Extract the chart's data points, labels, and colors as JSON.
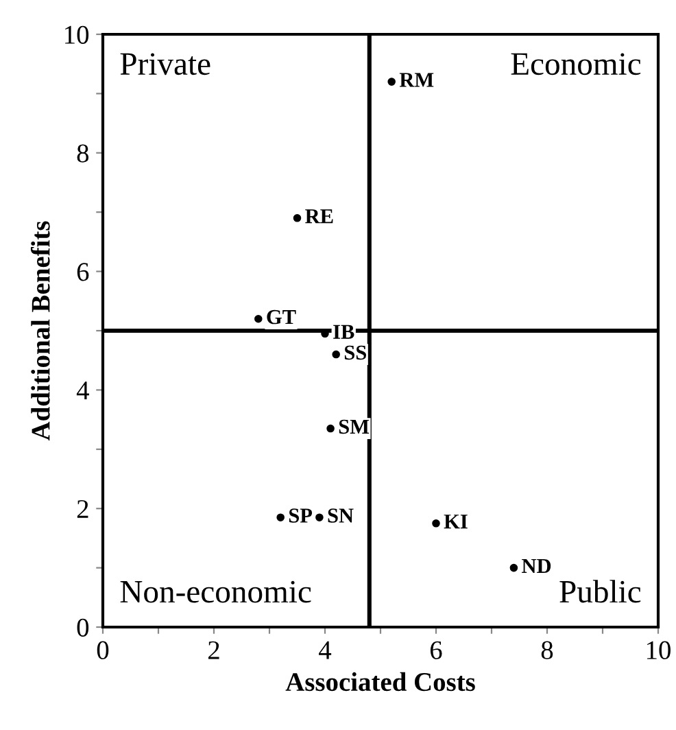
{
  "chart_data": {
    "type": "scatter",
    "xlabel": "Associated Costs",
    "ylabel": "Additional Benefits",
    "annotations": [
      "Private",
      "Economic",
      "Non-economic",
      "Public"
    ],
    "x": [
      5.2,
      3.5,
      2.8,
      4.0,
      4.2,
      4.1,
      3.2,
      3.9,
      6.0,
      7.4
    ],
    "values": [
      9.2,
      6.9,
      5.2,
      4.95,
      4.6,
      3.35,
      1.85,
      1.85,
      1.75,
      1.0
    ],
    "value_labels": [
      "RM",
      "RE",
      "GT",
      "IB",
      "SS",
      "SM",
      "SP",
      "SN",
      "KI",
      "ND"
    ],
    "marker": "circle",
    "color": "#000000",
    "grid": false,
    "ref_lines": [
      {
        "axis": "x",
        "value": 4.8,
        "color": "#000000"
      },
      {
        "axis": "y",
        "value": 5,
        "color": "#000000"
      }
    ],
    "xlim": [
      0,
      10
    ],
    "ylim": [
      0,
      10
    ],
    "xticks": [
      0,
      {
        "value": 1,
        "label": null
      },
      2,
      {
        "value": 3,
        "label": null
      },
      4,
      {
        "value": 5,
        "label": null
      },
      6,
      {
        "value": 7,
        "label": null
      },
      8,
      {
        "value": 9,
        "label": null
      },
      10
    ],
    "yticks": [
      0,
      {
        "value": 1,
        "label": null
      },
      2,
      {
        "value": 3,
        "label": null
      },
      4,
      {
        "value": 5,
        "label": null
      },
      6,
      {
        "value": 7,
        "label": null
      },
      8,
      {
        "value": 9,
        "label": null
      },
      10
    ]
  }
}
